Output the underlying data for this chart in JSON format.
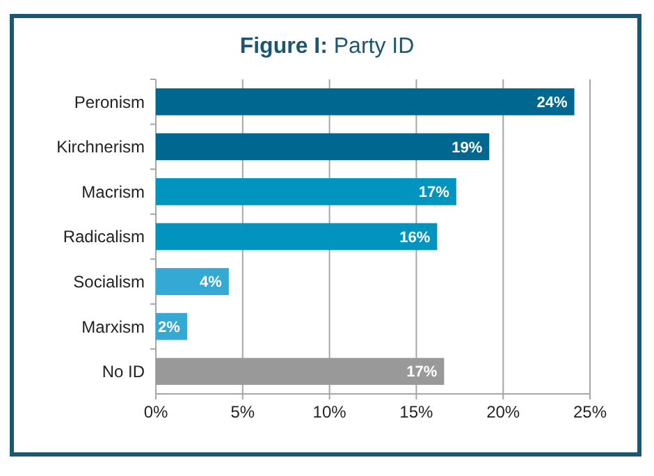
{
  "chart_data": {
    "type": "bar",
    "orientation": "horizontal",
    "title": "Figure I: Party ID",
    "categories": [
      "Peronism",
      "Kirchnerism",
      "Macrism",
      "Radicalism",
      "Socialism",
      "Marxism",
      "No ID"
    ],
    "values": [
      24.1,
      19.2,
      17.3,
      16.2,
      4.2,
      1.8,
      16.6
    ],
    "value_labels": [
      "24%",
      "19%",
      "17%",
      "16%",
      "4%",
      "2%",
      "17%"
    ],
    "colors": [
      "#006890",
      "#006890",
      "#0094bf",
      "#0094bf",
      "#33a9d4",
      "#33a9d4",
      "#999999"
    ],
    "xlim": [
      0,
      25
    ],
    "xticks": [
      {
        "value": 0,
        "label": "0%"
      },
      {
        "value": 5,
        "label": "5%"
      },
      {
        "value": 10,
        "label": "10%"
      },
      {
        "value": 15,
        "label": "15%"
      },
      {
        "value": 20,
        "label": "20%"
      },
      {
        "value": 25,
        "label": "25%"
      }
    ],
    "grid": "x"
  }
}
